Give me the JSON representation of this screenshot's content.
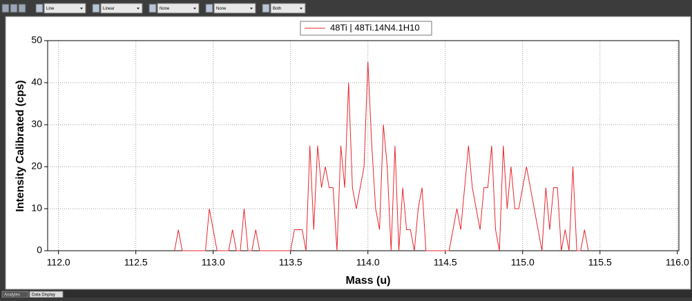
{
  "toolbar": {
    "dropdowns": [
      "Line",
      "Linear",
      "None",
      "None",
      "Both"
    ]
  },
  "tabs": [
    "Analytes",
    "Data Display"
  ],
  "chart_data": {
    "type": "line",
    "x_label": "Mass (u)",
    "y_label": "Intensity Calibrated (cps)",
    "x": [
      112.75,
      112.775,
      112.8,
      112.95,
      112.975,
      113.025,
      113.1,
      113.125,
      113.15,
      113.175,
      113.2,
      113.225,
      113.25,
      113.275,
      113.3,
      113.5,
      113.525,
      113.575,
      113.6,
      113.625,
      113.65,
      113.675,
      113.7,
      113.725,
      113.75,
      113.775,
      113.8,
      113.825,
      113.85,
      113.875,
      113.9,
      113.925,
      113.95,
      113.975,
      114.0,
      114.025,
      114.05,
      114.075,
      114.1,
      114.125,
      114.15,
      114.175,
      114.2,
      114.225,
      114.25,
      114.275,
      114.3,
      114.325,
      114.35,
      114.375,
      114.525,
      114.55,
      114.575,
      114.6,
      114.625,
      114.65,
      114.675,
      114.7,
      114.725,
      114.75,
      114.775,
      114.8,
      114.825,
      114.85,
      114.875,
      114.9,
      114.925,
      114.95,
      114.975,
      115.025,
      115.075,
      115.125,
      115.15,
      115.175,
      115.2,
      115.225,
      115.25,
      115.275,
      115.3,
      115.325,
      115.35,
      115.375,
      115.4,
      115.425
    ],
    "series": [
      {
        "name": "48Ti | 48Ti.14N4.1H10",
        "color": "#e8242c",
        "values": [
          0,
          5,
          0,
          0,
          10,
          0,
          0,
          5,
          0,
          0,
          10,
          0,
          0,
          5,
          0,
          0,
          5,
          5,
          0,
          25,
          5,
          25,
          15,
          20,
          15,
          15,
          0,
          25,
          15,
          40,
          15,
          10,
          15,
          20,
          45,
          25,
          10,
          5,
          30,
          20,
          0,
          25,
          0,
          15,
          5,
          5,
          0,
          10,
          15,
          0,
          0,
          5,
          10,
          5,
          15,
          25,
          15,
          10,
          5,
          15,
          15,
          25,
          5,
          0,
          25,
          10,
          20,
          10,
          10,
          20,
          10,
          0,
          15,
          5,
          15,
          15,
          0,
          5,
          0,
          20,
          0,
          0,
          5,
          0
        ]
      }
    ],
    "xlim": [
      111.93,
      116.01
    ],
    "ylim": [
      0,
      50
    ],
    "xticks": [
      {
        "value": 112,
        "label": "112.0"
      },
      112.5,
      {
        "value": 113,
        "label": "113.0"
      },
      113.5,
      {
        "value": 114,
        "label": "114.0"
      },
      114.5,
      {
        "value": 115,
        "label": "115.0"
      },
      115.5,
      {
        "value": 116,
        "label": "116.0"
      }
    ],
    "yticks": [
      0,
      10,
      20,
      30,
      40,
      50
    ],
    "grid": true
  }
}
